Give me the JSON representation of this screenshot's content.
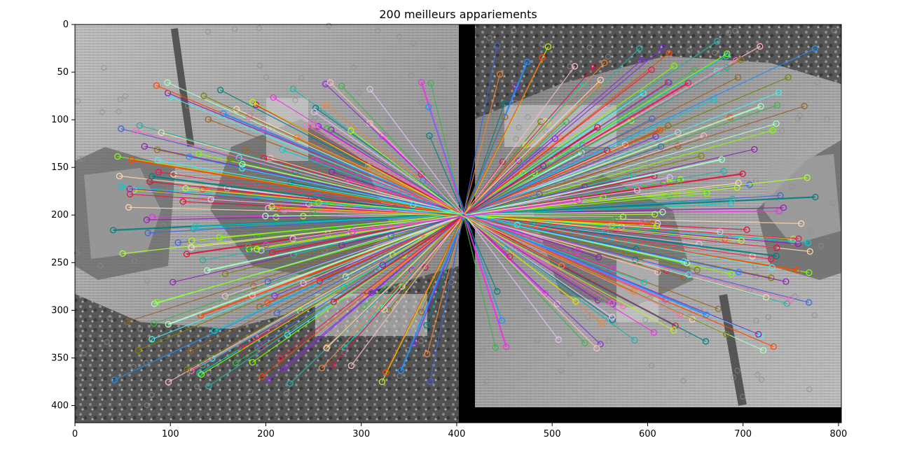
{
  "figure": {
    "title": "200 meilleurs appariements"
  },
  "chart_data": {
    "type": "image-feature-matches",
    "title": "200 meilleurs appariements",
    "xlabel": "",
    "ylabel": "",
    "xlim": [
      0,
      803
    ],
    "ylim": [
      418,
      0
    ],
    "xticks": [
      "0",
      "100",
      "200",
      "300",
      "400",
      "500",
      "600",
      "700",
      "800"
    ],
    "yticks": [
      "0",
      "50",
      "100",
      "150",
      "200",
      "250",
      "300",
      "350",
      "400"
    ],
    "grid": false,
    "images": [
      {
        "name": "left-image",
        "x_range": [
          0,
          402
        ],
        "y_range": [
          0,
          418
        ]
      },
      {
        "name": "right-image",
        "x_range": [
          419,
          803
        ],
        "y_range": [
          0,
          402
        ]
      }
    ],
    "convergence_point": [
      408,
      200
    ],
    "match_count": 200
  }
}
